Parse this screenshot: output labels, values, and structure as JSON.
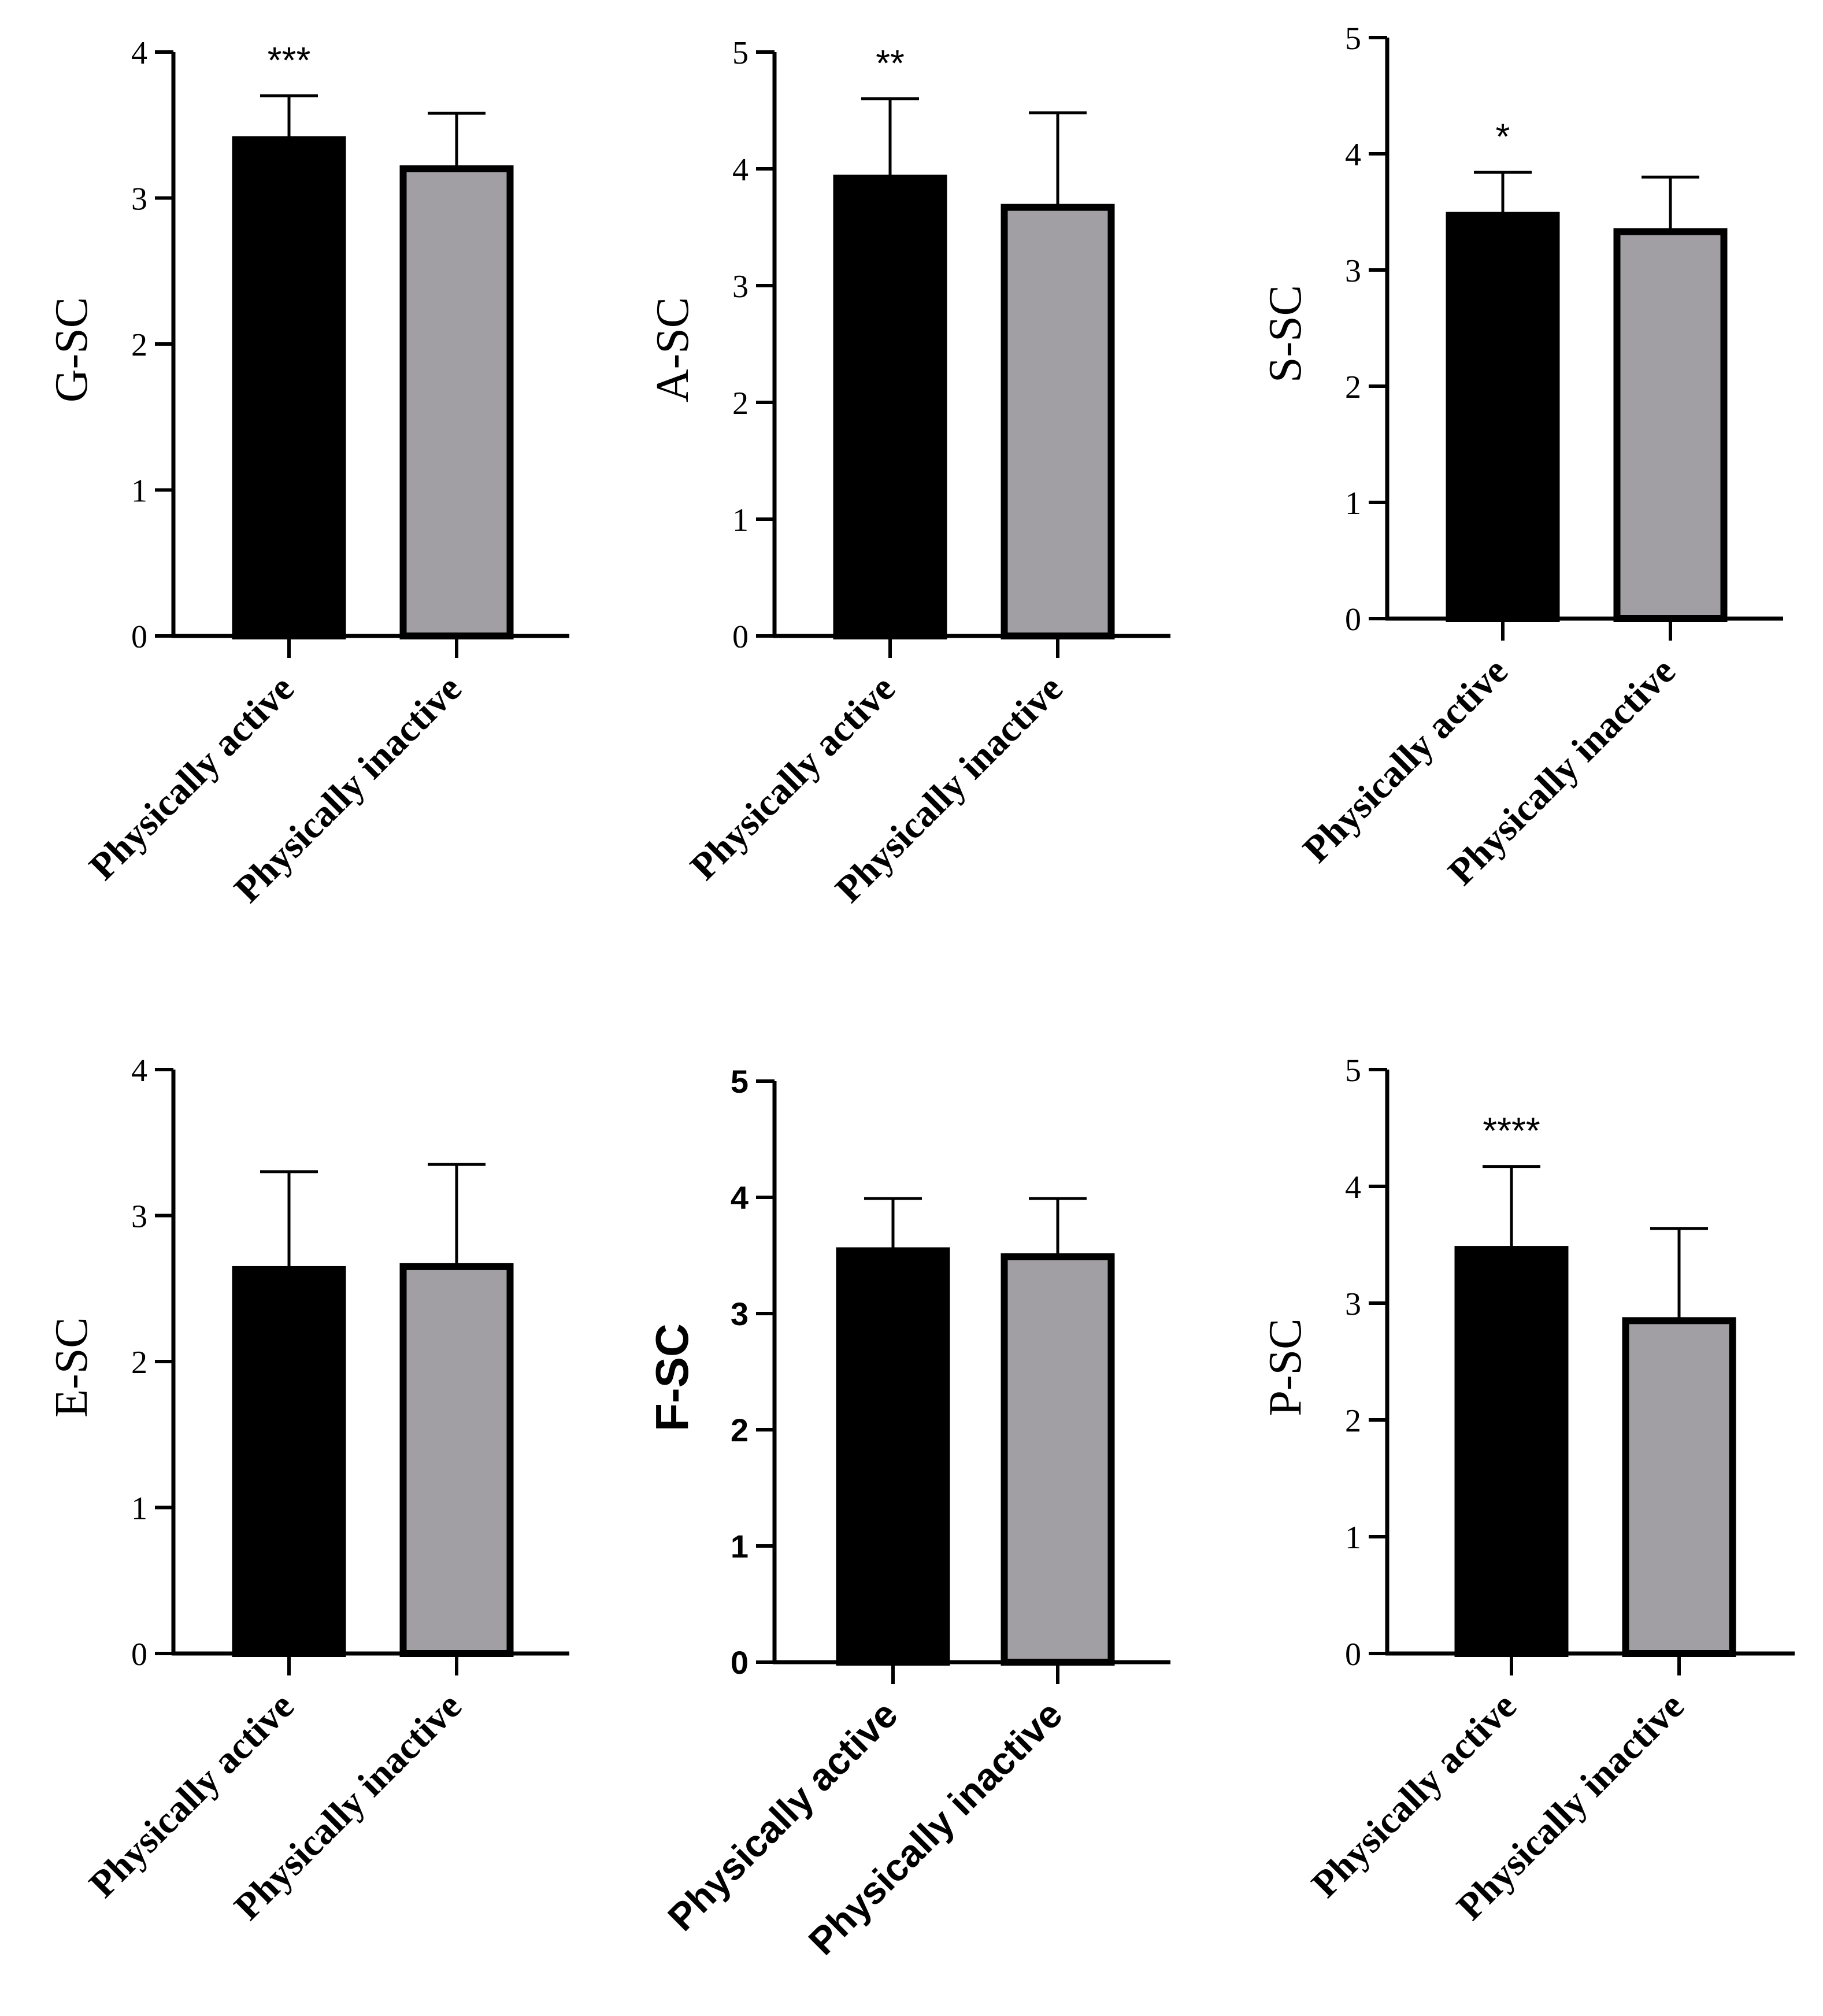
{
  "colors": {
    "active_bar": "#000000",
    "inactive_bar": "#a19fa4",
    "axis": "#000000"
  },
  "chart_data": [
    {
      "type": "bar",
      "ylabel": "G-SC",
      "ylim": [
        0,
        4
      ],
      "yticks": [
        "0",
        "1",
        "2",
        "3",
        "4"
      ],
      "categories": [
        "Physically active",
        "Physically inactive"
      ],
      "values": [
        3.4,
        3.2
      ],
      "errors": [
        0.3,
        0.38
      ],
      "significance": [
        "***",
        ""
      ]
    },
    {
      "type": "bar",
      "ylabel": "A-SC",
      "ylim": [
        0,
        5
      ],
      "yticks": [
        "0",
        "1",
        "2",
        "3",
        "4",
        "5"
      ],
      "categories": [
        "Physically active",
        "Physically inactive"
      ],
      "values": [
        3.92,
        3.67
      ],
      "errors": [
        0.68,
        0.81
      ],
      "significance": [
        "**",
        ""
      ]
    },
    {
      "type": "bar",
      "ylabel": "S-SC",
      "ylim": [
        0,
        5
      ],
      "yticks": [
        "0",
        "1",
        "2",
        "3",
        "4",
        "5"
      ],
      "categories": [
        "Physically active",
        "Physically inactive"
      ],
      "values": [
        3.47,
        3.33
      ],
      "errors": [
        0.37,
        0.47
      ],
      "significance": [
        "*",
        ""
      ]
    },
    {
      "type": "bar",
      "ylabel": "E-SC",
      "ylim": [
        0,
        4
      ],
      "yticks": [
        "0",
        "1",
        "2",
        "3",
        "4"
      ],
      "categories": [
        "Physically active",
        "Physically inactive"
      ],
      "values": [
        2.63,
        2.65
      ],
      "errors": [
        0.67,
        0.7
      ],
      "significance": [
        "",
        ""
      ]
    },
    {
      "type": "bar",
      "ylabel": "F-SC",
      "ylim": [
        0,
        5
      ],
      "yticks": [
        "0",
        "1",
        "2",
        "3",
        "4",
        "5"
      ],
      "categories": [
        "Physically active",
        "Physically inactive"
      ],
      "values": [
        3.54,
        3.49
      ],
      "errors": [
        0.45,
        0.5
      ],
      "significance": [
        "",
        ""
      ]
    },
    {
      "type": "bar",
      "ylabel": "P-SC",
      "ylim": [
        0,
        5
      ],
      "yticks": [
        "0",
        "1",
        "2",
        "3",
        "4",
        "5"
      ],
      "categories": [
        "Physically active",
        "Physically inactive"
      ],
      "values": [
        3.46,
        2.85
      ],
      "errors": [
        0.71,
        0.79
      ],
      "significance": [
        "****",
        ""
      ]
    }
  ]
}
